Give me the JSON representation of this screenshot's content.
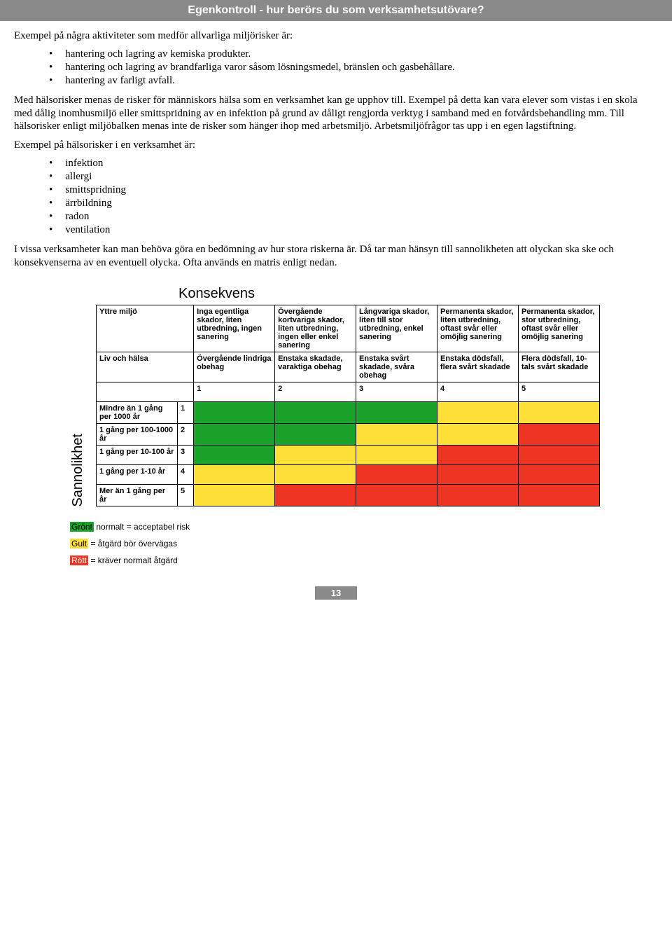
{
  "header": {
    "title": "Egenkontroll - hur berörs du som verksamhetsutövare?"
  },
  "intro1": "Exempel på några aktiviteter som medför allvarliga miljörisker är:",
  "miljo_bullets": [
    "hantering och lagring av kemiska produkter.",
    "hantering och lagring av brandfarliga varor såsom lösningsmedel, bränslen och gasbehållare.",
    "hantering av farligt avfall."
  ],
  "para1": "Med hälsorisker menas de risker för människors hälsa som en verksamhet kan ge upphov till. Exempel på detta kan vara elever som vistas i en skola med dålig inomhusmiljö eller smittspridning av en infektion på grund av dåligt rengjorda verktyg i samband med en fotvårdsbehandling mm. Till hälsorisker enligt miljöbalken menas inte de risker som hänger ihop med arbetsmiljö. Arbetsmiljöfrågor tas upp i en egen lagstiftning.",
  "intro2": "Exempel på hälsorisker i en verksamhet är:",
  "halso_bullets": [
    "infektion",
    "allergi",
    "smittspridning",
    "ärrbildning",
    "radon",
    "ventilation"
  ],
  "para2": "I vissa verksamheter kan man behöva göra en bedömning av hur stora riskerna är. Då tar man hänsyn till sannolikheten att olyckan ska ske och konsekvenserna av en eventuell olycka. Ofta används en matris enligt nedan.",
  "matrix": {
    "x_label": "Konsekvens",
    "y_label": "Sannolikhet",
    "row_headers_top": [
      "Yttre miljö",
      "Liv och hälsa"
    ],
    "consequence_env": [
      "Inga egentliga skador, liten utbredning, ingen sanering",
      "Övergående kortvariga skador, liten utbredning, ingen eller enkel sanering",
      "Långvariga skador, liten till stor utbredning, enkel sanering",
      "Permanenta skador, liten utbredning, oftast svår eller omöjlig sanering",
      "Permanenta skador, stor utbredning, oftast svår eller omöjlig sanering"
    ],
    "consequence_health": [
      "Övergående lindriga obehag",
      "Enstaka skadade, varaktiga obehag",
      "Enstaka svårt skadade, svåra obehag",
      "Enstaka dödsfall, flera svårt skadade",
      "Flera dödsfall, 10-tals svårt skadade"
    ],
    "col_numbers": [
      "1",
      "2",
      "3",
      "4",
      "5"
    ],
    "prob_rows": [
      {
        "label": "Mindre än 1 gång per 1000 år",
        "num": "1"
      },
      {
        "label": "1 gång per 100-1000 år",
        "num": "2"
      },
      {
        "label": "1 gång per 10-100 år",
        "num": "3"
      },
      {
        "label": "1 gång per 1-10 år",
        "num": "4"
      },
      {
        "label": "Mer än 1 gång per år",
        "num": "5"
      }
    ],
    "cell_colors": [
      [
        "#1aa22a",
        "#1aa22a",
        "#1aa22a",
        "#fee038",
        "#fee038"
      ],
      [
        "#1aa22a",
        "#1aa22a",
        "#fee038",
        "#fee038",
        "#ee3524"
      ],
      [
        "#1aa22a",
        "#fee038",
        "#fee038",
        "#ee3524",
        "#ee3524"
      ],
      [
        "#fee038",
        "#fee038",
        "#ee3524",
        "#ee3524",
        "#ee3524"
      ],
      [
        "#fee038",
        "#ee3524",
        "#ee3524",
        "#ee3524",
        "#ee3524"
      ]
    ]
  },
  "legend": {
    "green": {
      "label": "Grönt",
      "text": " normalt = acceptabel risk",
      "color": "#1aa22a"
    },
    "yellow": {
      "label": "Gult",
      "text": " = åtgärd bör övervägas",
      "color": "#fee038"
    },
    "red": {
      "label": "Rött",
      "text": " = kräver normalt åtgärd",
      "color": "#ee3524"
    }
  },
  "page_number": "13"
}
